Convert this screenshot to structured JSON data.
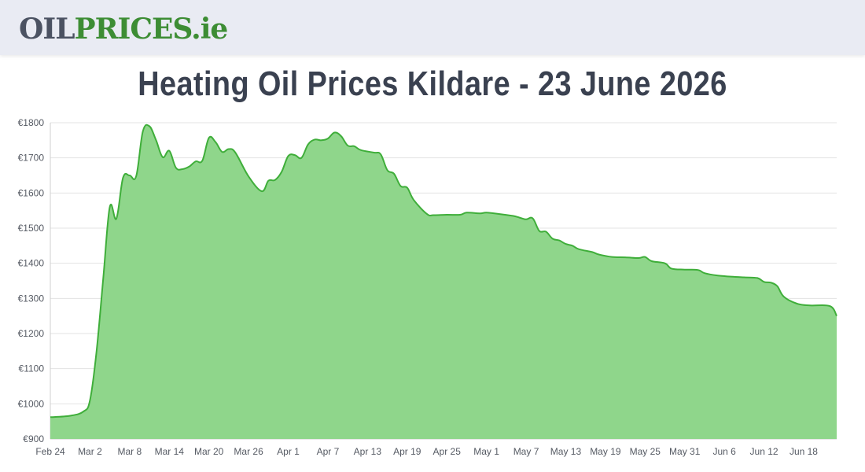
{
  "brand": {
    "logo_part1": "OIL",
    "logo_part2": "PRICES",
    "logo_part3": ".ie",
    "color_dark": "#4b5262",
    "color_green": "#3d8d34"
  },
  "page_title": "Heating Oil Prices Kildare - 23 June 2026",
  "chart_data": {
    "type": "area",
    "title": "Heating Oil Prices Kildare - 23 June 2026",
    "xlabel": "",
    "ylabel": "",
    "y_prefix": "€",
    "ylim": [
      900,
      1800
    ],
    "y_ticks": [
      900,
      1000,
      1100,
      1200,
      1300,
      1400,
      1500,
      1600,
      1700,
      1800
    ],
    "x_ticks": [
      "Feb 24",
      "Mar 2",
      "Mar 8",
      "Mar 14",
      "Mar 20",
      "Mar 26",
      "Apr 1",
      "Apr 7",
      "Apr 13",
      "Apr 19",
      "Apr 25",
      "May 1",
      "May 7",
      "May 13",
      "May 19",
      "May 25",
      "May 31",
      "Jun 6",
      "Jun 12",
      "Jun 18"
    ],
    "x_start": "2026-02-24",
    "x_end": "2026-06-23",
    "grid": true,
    "legend": "none",
    "line_color": "#3fae3a",
    "fill_color": "#8fd68b",
    "points": [
      [
        "2026-02-24",
        962
      ],
      [
        "2026-02-27",
        966
      ],
      [
        "2026-03-01",
        978
      ],
      [
        "2026-03-02",
        1010
      ],
      [
        "2026-03-03",
        1150
      ],
      [
        "2026-03-04",
        1355
      ],
      [
        "2026-03-05",
        1560
      ],
      [
        "2026-03-06",
        1527
      ],
      [
        "2026-03-07",
        1643
      ],
      [
        "2026-03-08",
        1650
      ],
      [
        "2026-03-09",
        1648
      ],
      [
        "2026-03-10",
        1775
      ],
      [
        "2026-03-11",
        1790
      ],
      [
        "2026-03-12",
        1750
      ],
      [
        "2026-03-13",
        1702
      ],
      [
        "2026-03-14",
        1720
      ],
      [
        "2026-03-15",
        1672
      ],
      [
        "2026-03-16",
        1668
      ],
      [
        "2026-03-17",
        1675
      ],
      [
        "2026-03-18",
        1690
      ],
      [
        "2026-03-19",
        1692
      ],
      [
        "2026-03-20",
        1757
      ],
      [
        "2026-03-21",
        1745
      ],
      [
        "2026-03-22",
        1717
      ],
      [
        "2026-03-23",
        1725
      ],
      [
        "2026-03-24",
        1715
      ],
      [
        "2026-03-26",
        1647
      ],
      [
        "2026-03-28",
        1605
      ],
      [
        "2026-03-29",
        1635
      ],
      [
        "2026-03-30",
        1637
      ],
      [
        "2026-03-31",
        1660
      ],
      [
        "2026-04-01",
        1705
      ],
      [
        "2026-04-02",
        1708
      ],
      [
        "2026-04-03",
        1700
      ],
      [
        "2026-04-04",
        1738
      ],
      [
        "2026-04-05",
        1752
      ],
      [
        "2026-04-06",
        1750
      ],
      [
        "2026-04-07",
        1755
      ],
      [
        "2026-04-08",
        1772
      ],
      [
        "2026-04-09",
        1762
      ],
      [
        "2026-04-10",
        1735
      ],
      [
        "2026-04-11",
        1733
      ],
      [
        "2026-04-12",
        1722
      ],
      [
        "2026-04-14",
        1715
      ],
      [
        "2026-04-15",
        1710
      ],
      [
        "2026-04-16",
        1665
      ],
      [
        "2026-04-17",
        1655
      ],
      [
        "2026-04-18",
        1620
      ],
      [
        "2026-04-19",
        1615
      ],
      [
        "2026-04-20",
        1580
      ],
      [
        "2026-04-22",
        1540
      ],
      [
        "2026-04-23",
        1537
      ],
      [
        "2026-04-25",
        1538
      ],
      [
        "2026-04-27",
        1538
      ],
      [
        "2026-04-28",
        1544
      ],
      [
        "2026-04-30",
        1542
      ],
      [
        "2026-05-01",
        1544
      ],
      [
        "2026-05-03",
        1540
      ],
      [
        "2026-05-05",
        1535
      ],
      [
        "2026-05-06",
        1530
      ],
      [
        "2026-05-07",
        1525
      ],
      [
        "2026-05-08",
        1528
      ],
      [
        "2026-05-09",
        1492
      ],
      [
        "2026-05-10",
        1490
      ],
      [
        "2026-05-11",
        1470
      ],
      [
        "2026-05-12",
        1465
      ],
      [
        "2026-05-13",
        1455
      ],
      [
        "2026-05-14",
        1450
      ],
      [
        "2026-05-15",
        1440
      ],
      [
        "2026-05-17",
        1432
      ],
      [
        "2026-05-18",
        1425
      ],
      [
        "2026-05-20",
        1418
      ],
      [
        "2026-05-22",
        1417
      ],
      [
        "2026-05-24",
        1415
      ],
      [
        "2026-05-25",
        1418
      ],
      [
        "2026-05-26",
        1406
      ],
      [
        "2026-05-28",
        1400
      ],
      [
        "2026-05-29",
        1385
      ],
      [
        "2026-05-31",
        1382
      ],
      [
        "2026-06-02",
        1381
      ],
      [
        "2026-06-03",
        1372
      ],
      [
        "2026-06-05",
        1365
      ],
      [
        "2026-06-07",
        1362
      ],
      [
        "2026-06-09",
        1360
      ],
      [
        "2026-06-11",
        1358
      ],
      [
        "2026-06-12",
        1347
      ],
      [
        "2026-06-13",
        1345
      ],
      [
        "2026-06-14",
        1335
      ],
      [
        "2026-06-15",
        1305
      ],
      [
        "2026-06-17",
        1285
      ],
      [
        "2026-06-19",
        1280
      ],
      [
        "2026-06-22",
        1278
      ],
      [
        "2026-06-23",
        1250
      ]
    ]
  }
}
